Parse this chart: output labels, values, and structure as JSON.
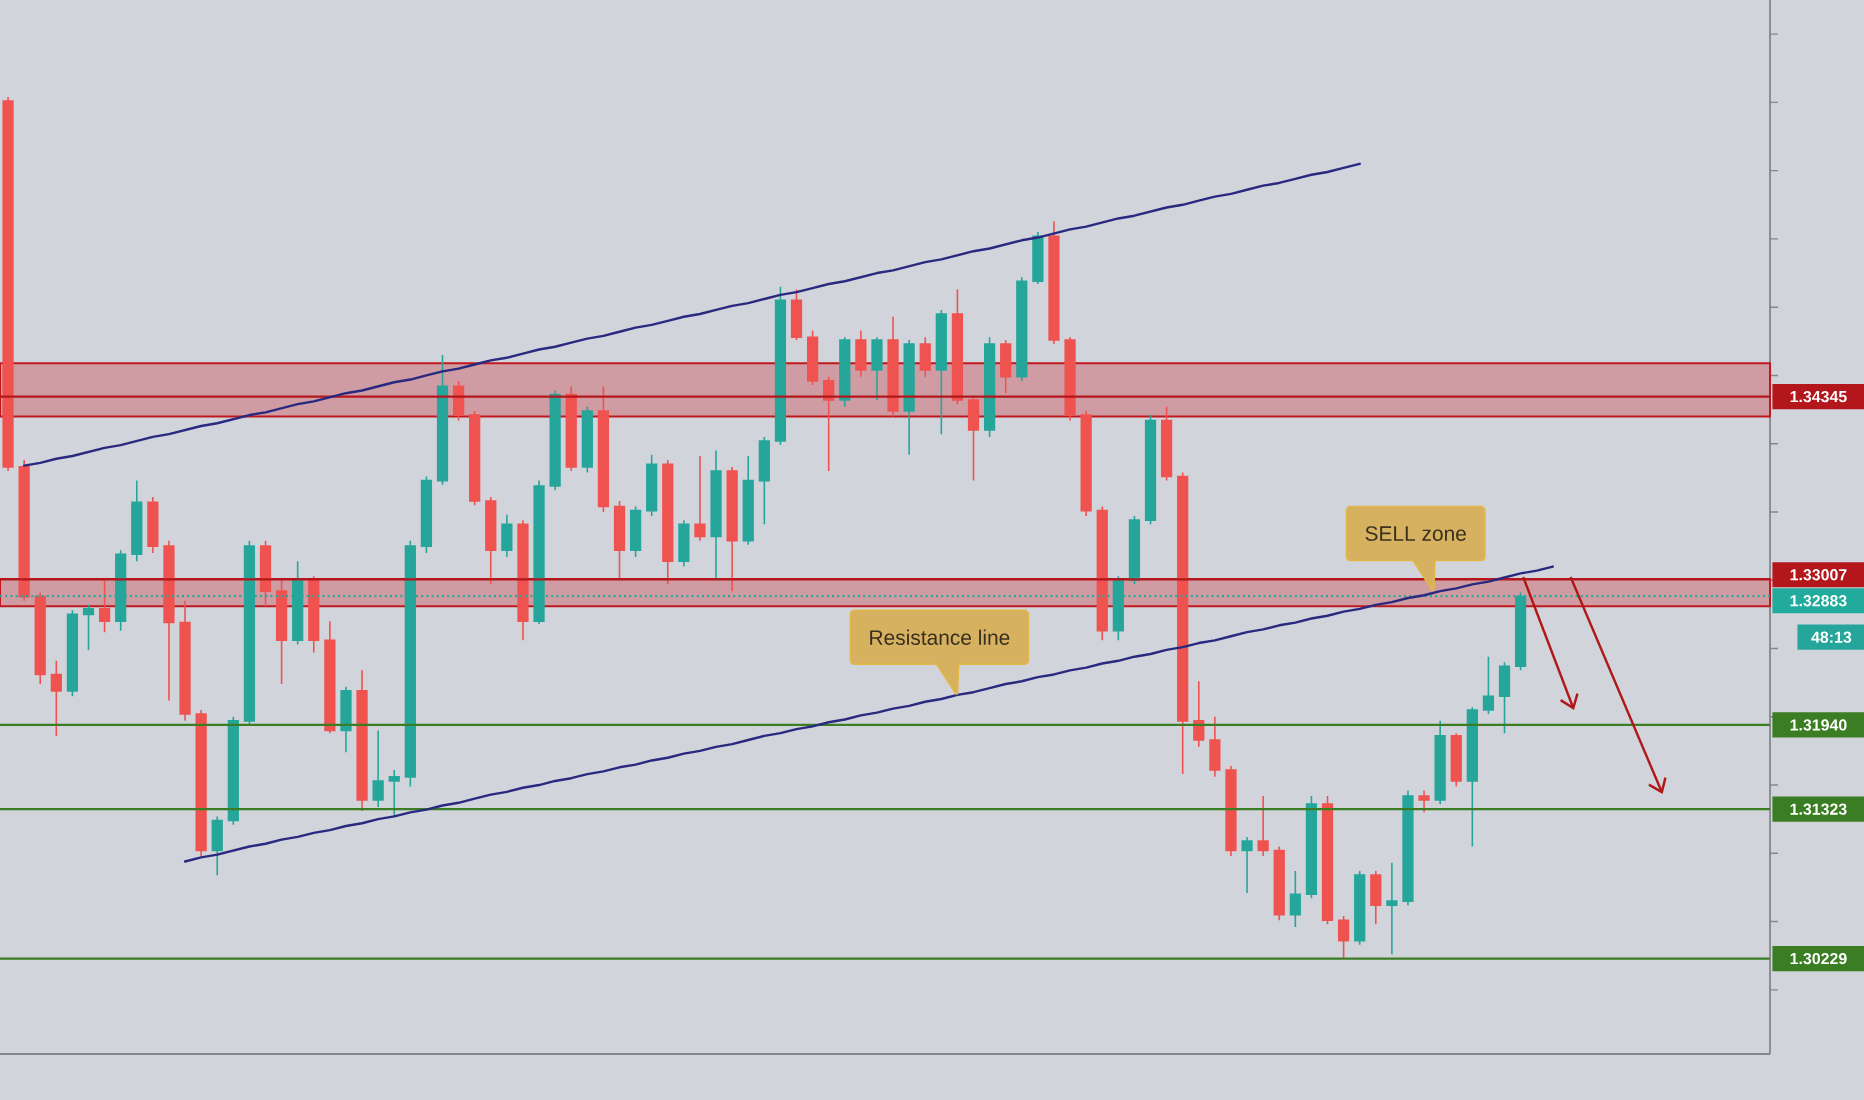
{
  "chart_data": {
    "type": "candlestick",
    "categories": [
      null,
      null,
      null,
      null,
      null,
      null,
      null,
      null,
      null,
      null,
      null,
      null,
      null,
      null,
      null,
      null,
      null,
      null,
      null,
      null,
      null,
      null,
      null,
      null,
      null,
      null,
      null,
      null,
      null,
      null,
      null,
      null,
      null,
      null,
      null,
      null,
      null,
      null,
      null,
      null,
      null,
      null,
      null,
      null,
      null,
      null,
      null,
      null,
      null,
      null,
      null,
      null,
      null,
      null,
      null,
      null,
      null,
      null,
      null,
      null,
      null,
      null,
      null,
      null,
      null,
      null,
      null,
      null,
      null,
      null,
      null,
      null,
      null,
      null,
      null,
      null,
      null,
      null,
      null,
      null,
      null,
      null,
      null,
      null,
      null,
      null,
      null,
      null,
      null,
      null,
      null,
      null,
      null,
      null,
      null,
      null,
      null,
      null,
      null,
      null,
      null,
      null,
      null,
      null,
      null,
      null,
      null,
      null,
      null,
      null
    ],
    "series": [
      {
        "ohlc": [
          [
            1.3651,
            1.3654,
            1.338,
            1.3383
          ],
          [
            1.3383,
            1.3388,
            1.3285,
            1.3288
          ],
          [
            1.3288,
            1.3291,
            1.3224,
            1.3231
          ],
          [
            1.3231,
            1.3241,
            1.3186,
            1.3219
          ],
          [
            1.3219,
            1.3278,
            1.3215,
            1.3275
          ],
          [
            1.3275,
            1.3282,
            1.3249,
            1.3279
          ],
          [
            1.3279,
            1.33,
            1.3262,
            1.327
          ],
          [
            1.327,
            1.3322,
            1.3263,
            1.3319
          ],
          [
            1.3319,
            1.3373,
            1.3314,
            1.3357
          ],
          [
            1.3357,
            1.3361,
            1.332,
            1.3325
          ],
          [
            1.3325,
            1.3329,
            1.3212,
            1.3269
          ],
          [
            1.3269,
            1.3285,
            1.3197,
            1.3202
          ],
          [
            1.3202,
            1.3205,
            1.3098,
            1.3102
          ],
          [
            1.3102,
            1.3127,
            1.3084,
            1.3124
          ],
          [
            1.3124,
            1.32,
            1.3121,
            1.3197
          ],
          [
            1.3197,
            1.3329,
            1.3194,
            1.3325
          ],
          [
            1.3325,
            1.3329,
            1.3281,
            1.3292
          ],
          [
            1.3292,
            1.33,
            1.3224,
            1.3256
          ],
          [
            1.3256,
            1.3314,
            1.3253,
            1.33
          ],
          [
            1.33,
            1.3303,
            1.3247,
            1.3256
          ],
          [
            1.3256,
            1.327,
            1.3188,
            1.319
          ],
          [
            1.319,
            1.3222,
            1.3174,
            1.3219
          ],
          [
            1.3219,
            1.3234,
            1.3131,
            1.3139
          ],
          [
            1.3139,
            1.319,
            1.3134,
            1.3153
          ],
          [
            1.3153,
            1.3161,
            1.3127,
            1.3156
          ],
          [
            1.3156,
            1.3329,
            1.3149,
            1.3325
          ],
          [
            1.3325,
            1.3376,
            1.332,
            1.3373
          ],
          [
            1.3373,
            1.3465,
            1.337,
            1.3442
          ],
          [
            1.3442,
            1.3446,
            1.3417,
            1.3421
          ],
          [
            1.3421,
            1.3424,
            1.3355,
            1.3358
          ],
          [
            1.3358,
            1.3361,
            1.3297,
            1.3322
          ],
          [
            1.3322,
            1.3348,
            1.3317,
            1.3341
          ],
          [
            1.3341,
            1.3344,
            1.3256,
            1.327
          ],
          [
            1.327,
            1.3373,
            1.3268,
            1.3369
          ],
          [
            1.3369,
            1.3439,
            1.3366,
            1.3436
          ],
          [
            1.3436,
            1.3442,
            1.338,
            1.3383
          ],
          [
            1.3383,
            1.3427,
            1.3379,
            1.3424
          ],
          [
            1.3424,
            1.3442,
            1.335,
            1.3354
          ],
          [
            1.3354,
            1.3358,
            1.33,
            1.3322
          ],
          [
            1.3322,
            1.3354,
            1.3317,
            1.3351
          ],
          [
            1.3351,
            1.3392,
            1.3347,
            1.3385
          ],
          [
            1.3385,
            1.3388,
            1.3297,
            1.3314
          ],
          [
            1.3314,
            1.3344,
            1.331,
            1.3341
          ],
          [
            1.3341,
            1.3391,
            1.3329,
            1.3332
          ],
          [
            1.3332,
            1.3395,
            1.33,
            1.338
          ],
          [
            1.338,
            1.3383,
            1.3292,
            1.3329
          ],
          [
            1.3329,
            1.3391,
            1.3326,
            1.3373
          ],
          [
            1.3373,
            1.3405,
            1.3341,
            1.3402
          ],
          [
            1.3402,
            1.3515,
            1.3399,
            1.3505
          ],
          [
            1.3505,
            1.3513,
            1.3476,
            1.3478
          ],
          [
            1.3478,
            1.3483,
            1.3443,
            1.3446
          ],
          [
            1.3446,
            1.3449,
            1.338,
            1.3432
          ],
          [
            1.3432,
            1.3478,
            1.3427,
            1.3476
          ],
          [
            1.3476,
            1.3483,
            1.3449,
            1.3454
          ],
          [
            1.3454,
            1.3478,
            1.3432,
            1.3476
          ],
          [
            1.3476,
            1.3493,
            1.342,
            1.3424
          ],
          [
            1.3424,
            1.3476,
            1.3392,
            1.3473
          ],
          [
            1.3473,
            1.3478,
            1.3449,
            1.3454
          ],
          [
            1.3454,
            1.3498,
            1.3407,
            1.3495
          ],
          [
            1.3495,
            1.3513,
            1.3429,
            1.3432
          ],
          [
            1.3432,
            1.3435,
            1.3373,
            1.341
          ],
          [
            1.341,
            1.3478,
            1.3405,
            1.3473
          ],
          [
            1.3473,
            1.3476,
            1.3437,
            1.3449
          ],
          [
            1.3449,
            1.3522,
            1.3446,
            1.3519
          ],
          [
            1.3519,
            1.3555,
            1.3517,
            1.3552
          ],
          [
            1.3552,
            1.3563,
            1.3473,
            1.3476
          ],
          [
            1.3476,
            1.3478,
            1.3417,
            1.3421
          ],
          [
            1.3421,
            1.3424,
            1.3347,
            1.3351
          ],
          [
            1.3351,
            1.3354,
            1.3256,
            1.3263
          ],
          [
            1.3263,
            1.3303,
            1.3256,
            1.33
          ],
          [
            1.33,
            1.3347,
            1.3297,
            1.3344
          ],
          [
            1.3344,
            1.3421,
            1.3341,
            1.3417
          ],
          [
            1.3417,
            1.3427,
            1.3373,
            1.3376
          ],
          [
            1.3376,
            1.3379,
            1.3158,
            1.3197
          ],
          [
            1.3197,
            1.3226,
            1.3178,
            1.3183
          ],
          [
            1.3183,
            1.32,
            1.3156,
            1.3161
          ],
          [
            1.3161,
            1.3164,
            1.3098,
            1.3102
          ],
          [
            1.3102,
            1.3112,
            1.3071,
            1.3109
          ],
          [
            1.3109,
            1.3142,
            1.3098,
            1.3102
          ],
          [
            1.3102,
            1.3105,
            1.3051,
            1.3055
          ],
          [
            1.3055,
            1.3087,
            1.3046,
            1.307
          ],
          [
            1.307,
            1.3142,
            1.3067,
            1.3136
          ],
          [
            1.3136,
            1.3142,
            1.3048,
            1.3051
          ],
          [
            1.3051,
            1.3054,
            1.3023,
            1.3036
          ],
          [
            1.3036,
            1.3087,
            1.3033,
            1.3084
          ],
          [
            1.3084,
            1.3087,
            1.3048,
            1.3062
          ],
          [
            1.3062,
            1.3093,
            1.3026,
            1.3065
          ],
          [
            1.3065,
            1.3146,
            1.3062,
            1.3142
          ],
          [
            1.3142,
            1.3146,
            1.313,
            1.3139
          ],
          [
            1.3139,
            1.3197,
            1.3136,
            1.3186
          ],
          [
            1.3186,
            1.3188,
            1.3149,
            1.3153
          ],
          [
            1.3153,
            1.3207,
            1.3105,
            1.3205
          ],
          [
            1.3205,
            1.3244,
            1.3202,
            1.3215
          ],
          [
            1.3215,
            1.324,
            1.3188,
            1.3237
          ],
          [
            1.3237,
            1.3291,
            1.3234,
            1.3288
          ],
          null,
          null,
          null,
          null,
          null,
          null,
          null,
          null,
          null,
          null,
          null,
          null,
          null,
          null,
          null
        ],
        "colors": [
          "#ef5350",
          "#ef5350",
          "#ef5350",
          "#ef5350",
          "#26a69a",
          "#26a69a",
          "#ef5350",
          "#26a69a",
          "#26a69a",
          "#ef5350",
          "#ef5350",
          "#ef5350",
          "#ef5350",
          "#26a69a",
          "#26a69a",
          "#26a69a",
          "#ef5350",
          "#ef5350",
          "#26a69a",
          "#ef5350",
          "#ef5350",
          "#26a69a",
          "#ef5350",
          "#26a69a",
          "#26a69a",
          "#26a69a",
          "#26a69a",
          "#26a69a",
          "#ef5350",
          "#ef5350",
          "#ef5350",
          "#26a69a",
          "#ef5350",
          "#26a69a",
          "#26a69a",
          "#ef5350",
          "#26a69a",
          "#ef5350",
          "#ef5350",
          "#26a69a",
          "#26a69a",
          "#ef5350",
          "#26a69a",
          "#ef5350",
          "#26a69a",
          "#ef5350",
          "#26a69a",
          "#26a69a",
          "#26a69a",
          "#ef5350",
          "#ef5350",
          "#ef5350",
          "#26a69a",
          "#ef5350",
          "#26a69a",
          "#ef5350",
          "#26a69a",
          "#ef5350",
          "#26a69a",
          "#ef5350",
          "#ef5350",
          "#26a69a",
          "#ef5350",
          "#26a69a",
          "#26a69a",
          "#ef5350",
          "#ef5350",
          "#ef5350",
          "#ef5350",
          "#26a69a",
          "#26a69a",
          "#26a69a",
          "#ef5350",
          "#ef5350",
          "#ef5350",
          "#ef5350",
          "#ef5350",
          "#26a69a",
          "#ef5350",
          "#ef5350",
          "#26a69a",
          "#26a69a",
          "#ef5350",
          "#ef5350",
          "#26a69a",
          "#ef5350",
          "#26a69a",
          "#26a69a",
          "#ef5350",
          "#26a69a",
          "#ef5350",
          "#26a69a",
          "#26a69a",
          "#26a69a",
          "#26a69a",
          null,
          null,
          null,
          null,
          null,
          null,
          null,
          null,
          null,
          null,
          null,
          null,
          null,
          null,
          null
        ]
      },
      {
        "type": "line",
        "color": "#2a2980",
        "values": [
          null,
          1.3384,
          1.3386,
          1.3389,
          1.3391,
          1.3394,
          1.3397,
          1.3399,
          1.3402,
          1.3405,
          1.3407,
          1.341,
          1.3413,
          1.3415,
          1.3418,
          1.3421,
          1.3423,
          1.3426,
          1.3429,
          1.3431,
          1.3434,
          1.3437,
          1.3439,
          1.3442,
          1.3445,
          1.3447,
          1.345,
          1.3453,
          1.3455,
          1.3458,
          1.3461,
          1.3463,
          1.3466,
          1.3469,
          1.3471,
          1.3474,
          1.3477,
          1.3479,
          1.3482,
          1.3485,
          1.3487,
          1.349,
          1.3493,
          1.3495,
          1.3498,
          1.3501,
          1.3503,
          1.3506,
          1.3509,
          1.3511,
          1.3514,
          1.3517,
          1.3519,
          1.3522,
          1.3525,
          1.3527,
          1.353,
          1.3533,
          1.3535,
          1.3538,
          1.3541,
          1.3543,
          1.3546,
          1.3549,
          1.3551,
          1.3554,
          1.3557,
          1.3559,
          1.3562,
          1.3565,
          1.3567,
          1.357,
          1.3573,
          1.3575,
          1.3578,
          1.3581,
          1.3583,
          1.3586,
          1.3589,
          1.3591,
          1.3594,
          1.3597,
          1.3599,
          1.3602,
          1.3605,
          null,
          null,
          null,
          null,
          null,
          null,
          null,
          null,
          null,
          null,
          null,
          null,
          null,
          null,
          null,
          null,
          null,
          null,
          null,
          null,
          null,
          null,
          null,
          null,
          null
        ]
      },
      {
        "type": "line",
        "color": "#2a2980",
        "values": [
          null,
          null,
          null,
          null,
          null,
          null,
          null,
          null,
          null,
          null,
          null,
          1.3094,
          1.3097,
          1.3099,
          1.3102,
          1.3105,
          1.3107,
          1.311,
          1.3112,
          1.3115,
          1.3117,
          1.312,
          1.3122,
          1.3125,
          1.3127,
          1.313,
          1.3132,
          1.3135,
          1.3137,
          1.314,
          1.3143,
          1.3145,
          1.3148,
          1.315,
          1.3153,
          1.3155,
          1.3158,
          1.316,
          1.3163,
          1.3165,
          1.3168,
          1.317,
          1.3173,
          1.3175,
          1.3178,
          1.318,
          1.3183,
          1.3186,
          1.3188,
          1.3191,
          1.3193,
          1.3196,
          1.3198,
          1.3201,
          1.3203,
          1.3206,
          1.3208,
          1.3211,
          1.3213,
          1.3216,
          1.3218,
          1.3221,
          1.3224,
          1.3226,
          1.3229,
          1.3231,
          1.3234,
          1.3236,
          1.3239,
          1.3241,
          1.3244,
          1.3246,
          1.3249,
          1.3251,
          1.3254,
          1.3256,
          1.3259,
          1.3262,
          1.3264,
          1.3267,
          1.3269,
          1.3272,
          1.3274,
          1.3277,
          1.3279,
          1.3282,
          1.3284,
          1.3287,
          1.3289,
          1.3292,
          1.3294,
          1.3297,
          1.3299,
          1.3302,
          1.3305,
          1.3307,
          1.331,
          null,
          null,
          null,
          null,
          null,
          null,
          null,
          null,
          null,
          null,
          null,
          null,
          null
        ]
      }
    ],
    "ylim": [
      1.2953,
      1.3725
    ],
    "yticks": [
      {
        "value": 1.3,
        "label": null
      },
      {
        "value": 1.305,
        "label": null
      },
      {
        "value": 1.31,
        "label": null
      },
      {
        "value": 1.315,
        "label": null
      },
      {
        "value": 1.32,
        "label": null
      },
      {
        "value": 1.325,
        "label": null
      },
      {
        "value": 1.33,
        "label": null
      },
      {
        "value": 1.335,
        "label": null
      },
      {
        "value": 1.34,
        "label": null
      },
      {
        "value": 1.345,
        "label": null
      },
      {
        "value": 1.35,
        "label": null
      },
      {
        "value": 1.355,
        "label": null
      },
      {
        "value": 1.36,
        "label": null
      },
      {
        "value": 1.365,
        "label": null
      },
      {
        "value": 1.37,
        "label": null
      }
    ],
    "ref_lines": [
      {
        "axis": "y",
        "value": 1.34345,
        "label": "1.34345",
        "color": "#b3161b"
      },
      {
        "axis": "y",
        "value": 1.33007,
        "label": "1.33007",
        "color": "#b3161b"
      },
      {
        "axis": "y",
        "value": 1.32883,
        "label": "1.32883",
        "color": "#22ab9c",
        "line_style": "dotted"
      },
      {
        "axis": "y",
        "value": 1.3194,
        "label": "1.31940",
        "color": "#3a7d22"
      },
      {
        "axis": "y",
        "value": 1.31323,
        "label": "1.31323",
        "color": "#3a7d22"
      },
      {
        "axis": "y",
        "value": 1.30229,
        "label": "1.30229",
        "color": "#3a7d22"
      }
    ],
    "bands": [
      {
        "axis": "y",
        "from": 1.342,
        "to": 1.3459,
        "color": "#d09ca4"
      },
      {
        "axis": "y",
        "from": 1.3281,
        "to": 1.3301,
        "color": "#d09ca4",
        "label": "SELL zone"
      }
    ],
    "annotations": [
      {
        "text": "Resistance line",
        "y": 1.3215
      },
      "48:13"
    ]
  }
}
